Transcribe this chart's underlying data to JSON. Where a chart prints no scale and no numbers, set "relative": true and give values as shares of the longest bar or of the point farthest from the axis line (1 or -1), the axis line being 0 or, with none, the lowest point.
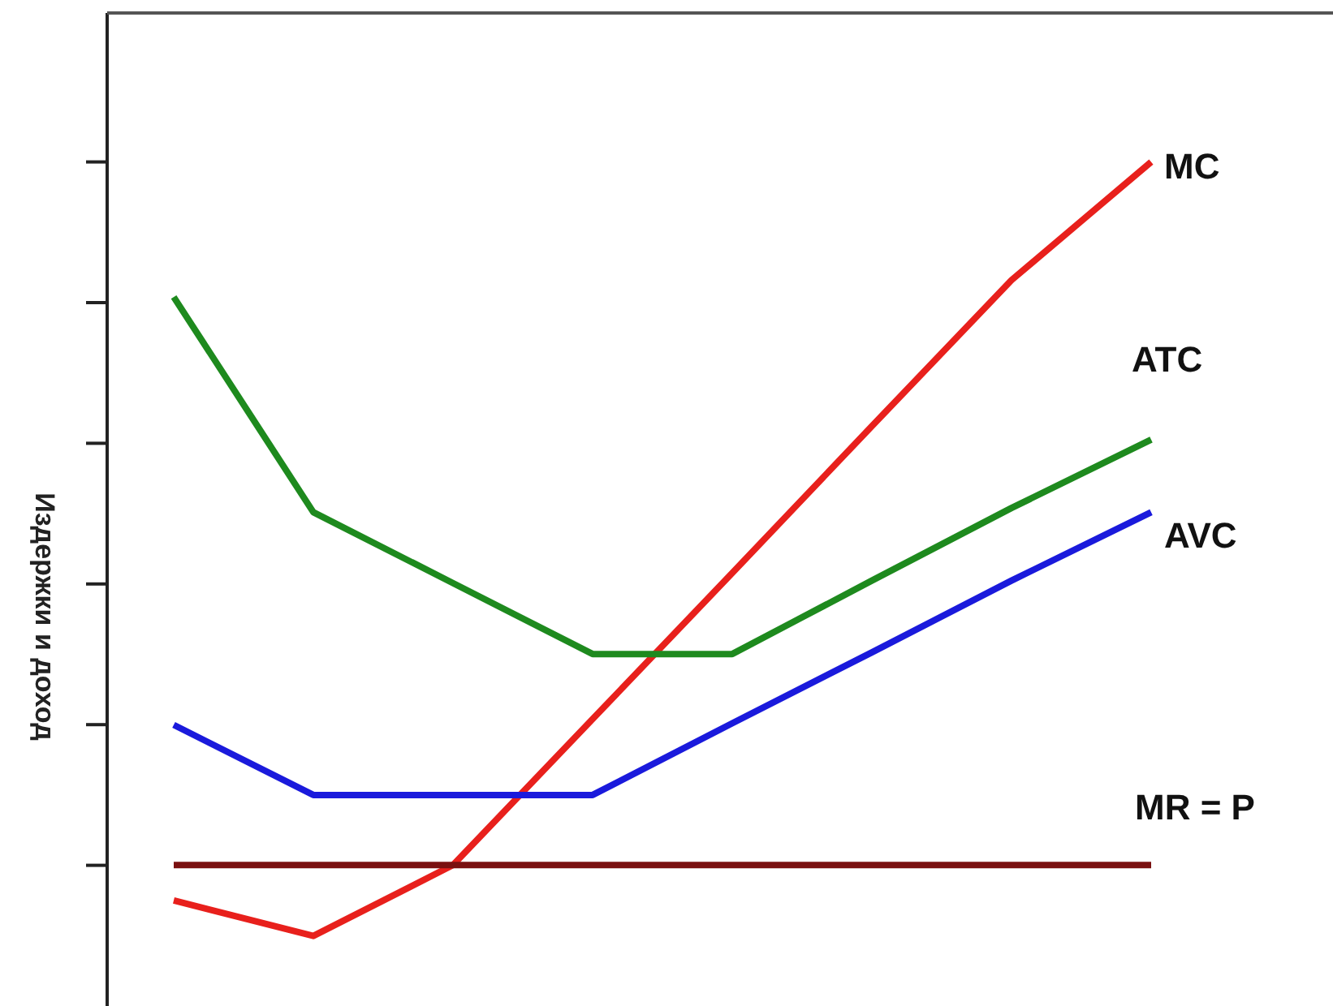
{
  "chart_data": {
    "type": "line",
    "ylabel": "Издержки и доход",
    "relative": true,
    "legend": false,
    "grid": false,
    "marker": "none",
    "line_style": "solid",
    "categories": [
      null,
      null,
      null,
      null,
      null,
      null,
      null,
      null
    ],
    "series": [
      {
        "name": "MC",
        "color": "#e8201c",
        "values": [
          0.125,
          0.083,
          0.167,
          0.34,
          0.513,
          0.687,
          0.86,
          1.0
        ]
      },
      {
        "name": "ATC",
        "color": "#1e8a1e",
        "values": [
          0.84,
          0.585,
          0.501,
          0.417,
          0.417,
          0.504,
          0.59,
          0.671
        ]
      },
      {
        "name": "AVC",
        "color": "#1a1adc",
        "values": [
          0.333,
          0.25,
          0.25,
          0.25,
          0.335,
          0.419,
          0.504,
          0.585
        ]
      },
      {
        "name": "MR = P",
        "color": "#7a1010",
        "values": [
          0.167,
          0.167,
          0.167,
          0.167,
          0.167,
          0.167,
          0.167,
          0.167
        ]
      }
    ]
  }
}
